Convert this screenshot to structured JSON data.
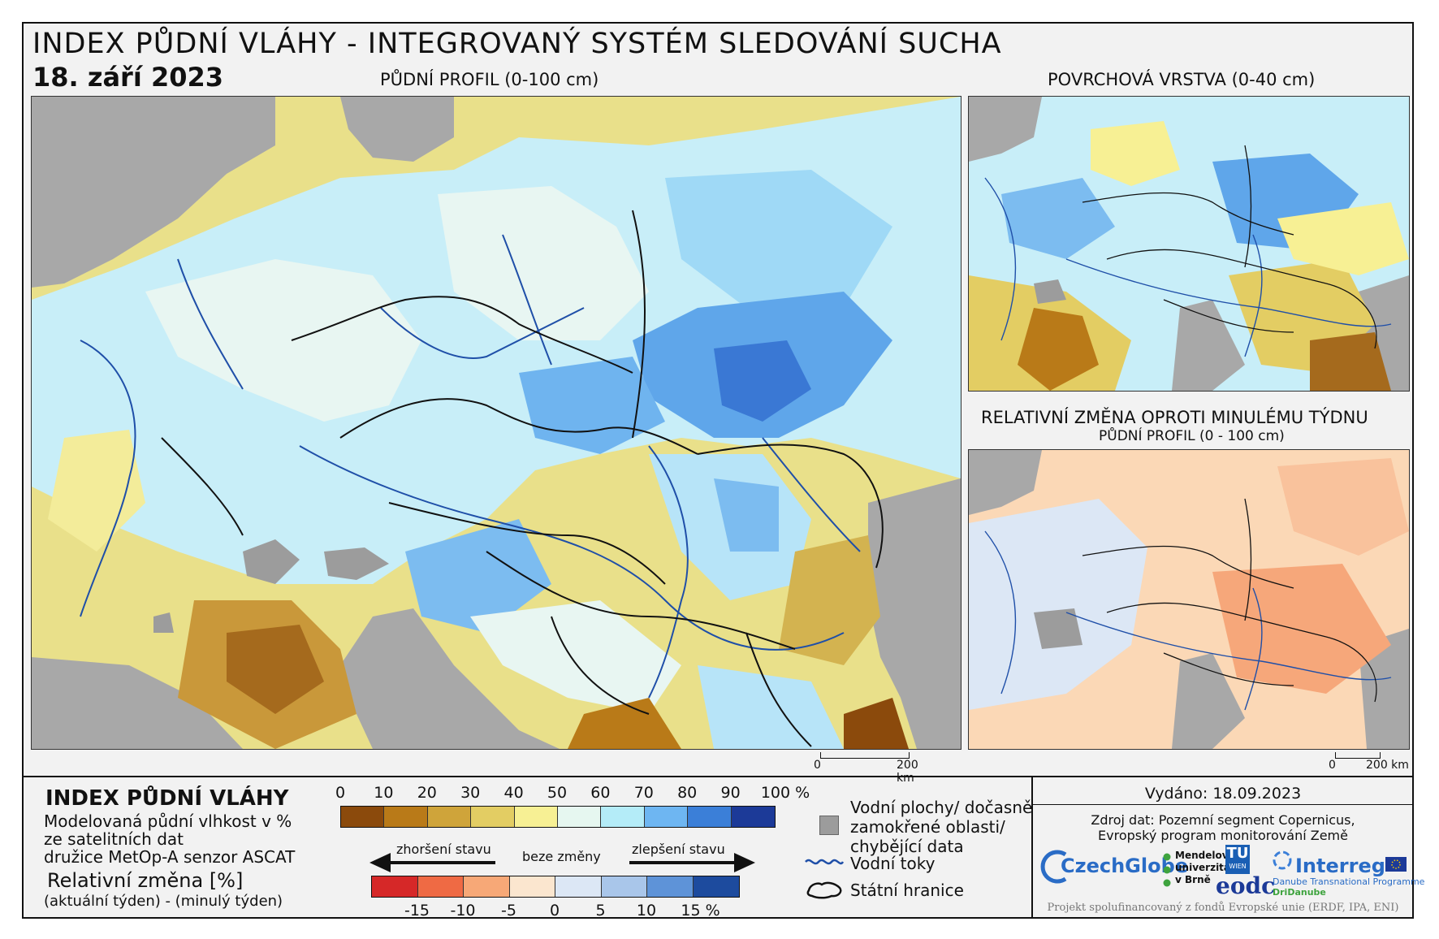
{
  "header": {
    "title": "INDEX PŮDNÍ VLÁHY - INTEGROVANÝ SYSTÉM SLEDOVÁNÍ SUCHA",
    "date": "18. září 2023"
  },
  "maps": {
    "main_label": "PŮDNÍ PROFIL (0-100 cm)",
    "surface_label": "POVRCHOVÁ VRSTVA (0-40 cm)",
    "change_label": "RELATIVNÍ ZMĚNA OPROTI MINULÉMU TÝDNU",
    "change_sublabel": "PŮDNÍ PROFIL (0 - 100 cm)",
    "scale_zero": "0",
    "scale_km": "200 km"
  },
  "legend": {
    "title": "INDEX PŮDNÍ VLÁHY",
    "desc_line1": "Modelovaná půdní vlhkost v %",
    "desc_line2": "ze satelitních dat",
    "desc_line3": "družice MetOp-A senzor ASCAT",
    "change_title": "Relativní změna [%]",
    "change_desc": "(aktuální týden) - (minulý týden)",
    "index_ticks": [
      "0",
      "10",
      "20",
      "30",
      "40",
      "50",
      "60",
      "70",
      "80",
      "90",
      "100 %"
    ],
    "index_colors": [
      "#8b4a0c",
      "#b97a18",
      "#cfa43a",
      "#e3cd63",
      "#f7f094",
      "#e6f7f0",
      "#b4ecf8",
      "#6eb6f2",
      "#3b7fd8",
      "#1c3a98"
    ],
    "worse": "zhoršení stavu",
    "nochange": "beze změny",
    "better": "zlepšení stavu",
    "change_ticks": [
      "-15",
      "-10",
      "-5",
      "0",
      "5",
      "10",
      "15 %"
    ],
    "change_colors": [
      "#d62828",
      "#ef6a44",
      "#f7a877",
      "#fbe6cf",
      "#dce7f5",
      "#a9c6ea",
      "#5e93d8",
      "#1d4b9e"
    ],
    "water_label_1": "Vodní plochy/ dočasně",
    "water_label_2": "zamokřené oblasti/",
    "water_label_3": "chybějící data",
    "rivers_label": "Vodní toky",
    "borders_label": "Státní hranice"
  },
  "footer": {
    "issued": "Vydáno: 18.09.2023",
    "source_1": "Zdroj dat: Pozemní segment Copernicus,",
    "source_2": "Evropský program monitorování Země",
    "czechglobe": "CzechGlobe",
    "mendel_1": "Mendelova",
    "mendel_2": "univerzita",
    "mendel_3": "v Brně",
    "tu": "TU",
    "tu_sub": "WIEN",
    "eodc": "eodc",
    "interreg": "Interreg",
    "interreg_sub": "Danube Transnational Programme",
    "dridanube": "DriDanube",
    "funding": "Projekt spolufinancovaný z fondů Evropské unie (ERDF, IPA, ENI)"
  }
}
